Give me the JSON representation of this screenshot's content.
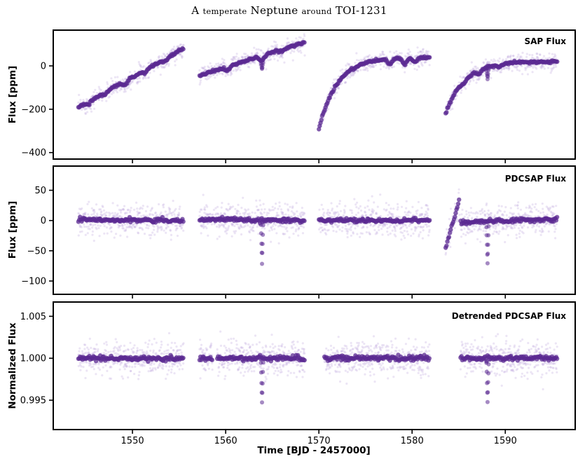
{
  "figure": {
    "title_main": "A",
    "title_sc1": "temperate",
    "title_main2": "Neptune",
    "title_sc2": "around",
    "title_main3": "TOI-1231"
  },
  "chart_data": {
    "type": "scatter",
    "title": "A temperate Neptune around TOI-1231",
    "xlabel": "Time [BJD - 2457000]",
    "xlim": [
      1541.5,
      1597.5
    ],
    "x_ticks": [
      1550,
      1560,
      1570,
      1580,
      1590
    ],
    "x_tick_labels": [
      "1550",
      "1560",
      "1570",
      "1580",
      "1590"
    ],
    "point_color": "#5b2a91",
    "cloud_color": "#b9a2dc",
    "sectors": [
      [
        1544.2,
        1555.5
      ],
      [
        1557.2,
        1568.5
      ],
      [
        1570.0,
        1581.9
      ],
      [
        1583.6,
        1595.6
      ]
    ],
    "panels": [
      {
        "id": "sap",
        "label": "SAP Flux",
        "ylabel": "Flux [ppm]",
        "ylim": [
          -430,
          165
        ],
        "y_ticks": [
          0,
          -200,
          -400
        ],
        "y_tick_labels": [
          "0",
          "−200",
          "−400"
        ],
        "segments": [
          {
            "start": 1544.2,
            "end": 1555.5,
            "from": -190,
            "to": 80,
            "shape": "linear",
            "notches": [
              [
                1545.2,
                12
              ],
              [
                1547.0,
                10
              ],
              [
                1549.2,
                14
              ],
              [
                1551.3,
                12
              ],
              [
                1553.5,
                12
              ]
            ]
          },
          {
            "start": 1557.2,
            "end": 1568.5,
            "from": -45,
            "to": 110,
            "shape": "linear",
            "notches": [
              [
                1560.2,
                15
              ],
              [
                1563.9,
                20
              ],
              [
                1566.0,
                10
              ]
            ]
          },
          {
            "start": 1570.0,
            "end": 1581.9,
            "from": -290,
            "to": 40,
            "shape": "recovery",
            "notches": [
              [
                1577.6,
                25
              ],
              [
                1579.2,
                30
              ],
              [
                1580.3,
                20
              ]
            ]
          },
          {
            "start": 1583.6,
            "end": 1595.6,
            "from": -220,
            "to": 20,
            "shape": "recovery",
            "notches": [
              [
                1585.6,
                12
              ],
              [
                1587.2,
                15
              ],
              [
                1589.4,
                12
              ]
            ]
          }
        ],
        "transits": [
          [
            1563.9,
            -15,
            0.12
          ],
          [
            1588.1,
            -60,
            0.12
          ]
        ],
        "noise": 35
      },
      {
        "id": "pdcsap",
        "label": "PDCSAP Flux",
        "ylabel": "Flux [ppm]",
        "ylim": [
          -122,
          90
        ],
        "y_ticks": [
          50,
          0,
          -50,
          -100
        ],
        "y_tick_labels": [
          "50",
          "0",
          "−50",
          "−100"
        ],
        "segments": [
          {
            "start": 1544.2,
            "end": 1555.5,
            "from": 2,
            "to": 0,
            "shape": "flat",
            "notches": []
          },
          {
            "start": 1557.2,
            "end": 1568.5,
            "from": 2,
            "to": 0,
            "shape": "flat",
            "notches": []
          },
          {
            "start": 1570.0,
            "end": 1581.9,
            "from": 0,
            "to": 0,
            "shape": "flat",
            "notches": []
          },
          {
            "start": 1583.6,
            "end": 1585.1,
            "from": -45,
            "to": 35,
            "shape": "linear",
            "notches": []
          },
          {
            "start": 1585.2,
            "end": 1595.6,
            "from": -3,
            "to": 3,
            "shape": "flat",
            "notches": []
          }
        ],
        "transits": [
          [
            1563.9,
            -70,
            0.12
          ],
          [
            1588.1,
            -70,
            0.12
          ]
        ],
        "noise": 22
      },
      {
        "id": "detrended",
        "label": "Detrended PDCSAP Flux",
        "ylabel": "Normalized Flux",
        "ylim": [
          0.9915,
          1.0067
        ],
        "y_ticks": [
          1.005,
          1.0,
          0.995
        ],
        "y_tick_labels": [
          "1.005",
          "1.000",
          "0.995"
        ],
        "segments": [
          {
            "start": 1544.2,
            "end": 1555.5,
            "from": 1.0,
            "to": 1.0,
            "shape": "flat",
            "notches": []
          },
          {
            "start": 1557.2,
            "end": 1558.6,
            "from": 1.0,
            "to": 1.0,
            "shape": "flat",
            "notches": []
          },
          {
            "start": 1559.1,
            "end": 1568.5,
            "from": 1.0,
            "to": 1.0,
            "shape": "flat",
            "notches": []
          },
          {
            "start": 1570.6,
            "end": 1581.9,
            "from": 1.0,
            "to": 1.0,
            "shape": "flat",
            "notches": []
          },
          {
            "start": 1585.2,
            "end": 1595.6,
            "from": 1.0,
            "to": 1.0,
            "shape": "flat",
            "notches": []
          }
        ],
        "transits": [
          [
            1563.9,
            0.9948,
            0.12
          ],
          [
            1588.1,
            0.9948,
            0.12
          ]
        ],
        "noise": 0.0018
      }
    ]
  }
}
